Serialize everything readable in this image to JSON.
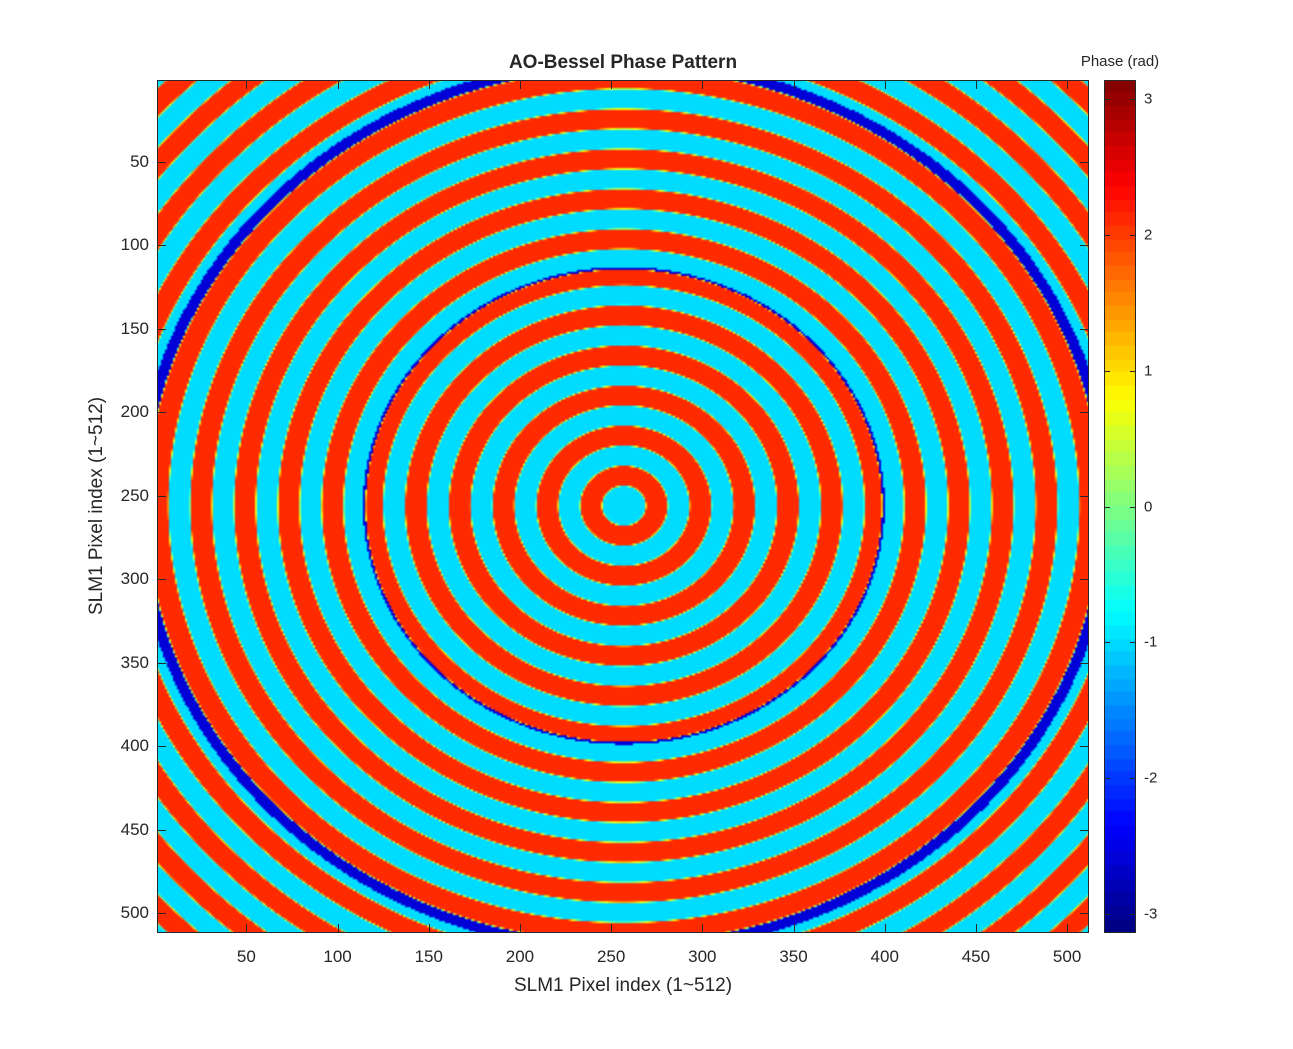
{
  "chart_data": {
    "type": "heatmap",
    "title": "AO-Bessel Phase Pattern",
    "xlabel": "SLM1 Pixel index (1~512)",
    "ylabel": "SLM1 Pixel index (1~512)",
    "xlim": [
      1,
      512
    ],
    "ylim": [
      1,
      512
    ],
    "y_reversed": true,
    "xticks": [
      50,
      100,
      150,
      200,
      250,
      300,
      350,
      400,
      450,
      500
    ],
    "yticks": [
      50,
      100,
      150,
      200,
      250,
      300,
      350,
      400,
      450,
      500
    ],
    "pattern": {
      "description_center_x": 257,
      "description_center_y": 256,
      "ring_period_pixels": 24,
      "value_low": -1.0,
      "value_high": 2.1,
      "inner_ring_radius": 140,
      "outer_ring_radius": 265
    },
    "colorbar": {
      "label": "Phase (rad)",
      "colormap": "jet",
      "clim": [
        -3.1416,
        3.1416
      ],
      "ticks": [
        -3,
        -2,
        -1,
        0,
        1,
        2,
        3
      ]
    }
  }
}
